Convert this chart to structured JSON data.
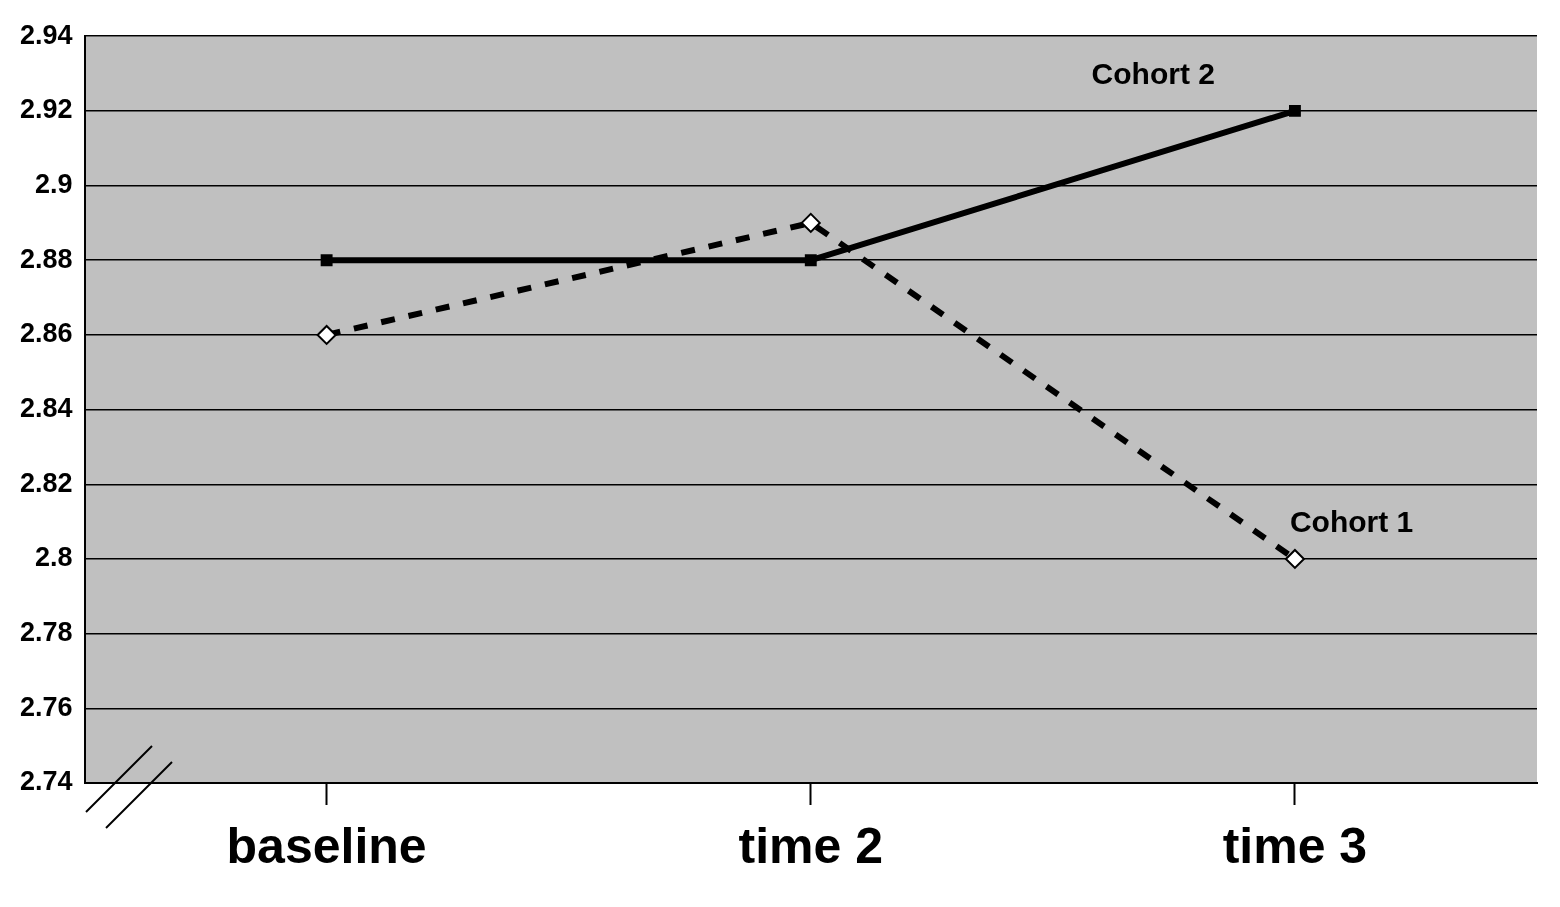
{
  "chart_data": {
    "type": "line",
    "categories": [
      "baseline",
      "time 2",
      "time 3"
    ],
    "series": [
      {
        "name": "Cohort 1",
        "color": "#000000",
        "values": [
          2.86,
          2.89,
          2.8
        ],
        "marker": "diamond",
        "line_style": "dashed"
      },
      {
        "name": "Cohort 2",
        "color": "#000000",
        "values": [
          2.88,
          2.88,
          2.92
        ],
        "marker": "square",
        "line_style": "solid"
      }
    ],
    "ylim": [
      2.74,
      2.94
    ],
    "yticks": [
      2.74,
      2.76,
      2.78,
      2.8,
      2.82,
      2.84,
      2.86,
      2.88,
      2.9,
      2.92,
      2.94
    ],
    "grid": "y",
    "legend": false
  }
}
